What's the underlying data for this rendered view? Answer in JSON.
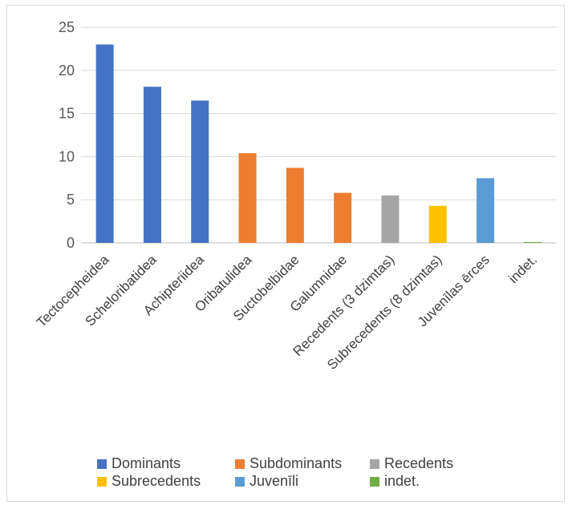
{
  "chart_data": {
    "type": "bar",
    "categories": [
      "Tectocepheidea",
      "Scheloribatidea",
      "Achipteriidea",
      "Oribatulidea",
      "Suctobelbidae",
      "Galumnidae",
      "Recedents (3 dzimtas)",
      "Subrecedents (8 dzimtas)",
      "Juvenīlas ērces",
      "indet."
    ],
    "values": [
      23.0,
      18.1,
      16.5,
      10.4,
      8.7,
      5.8,
      5.5,
      4.3,
      7.5,
      0.1
    ],
    "groups": [
      "Dominants",
      "Dominants",
      "Dominants",
      "Subdominants",
      "Subdominants",
      "Subdominants",
      "Recedents",
      "Subrecedents",
      "Juvenīli",
      "indet."
    ],
    "ylim": [
      0,
      25
    ],
    "yticks": [
      0,
      5,
      10,
      15,
      20,
      25
    ],
    "grid": true,
    "legend_position": "bottom",
    "legend": [
      {
        "name": "Dominants",
        "color": "#4472c4"
      },
      {
        "name": "Subdominants",
        "color": "#ed7d31"
      },
      {
        "name": "Recedents",
        "color": "#a5a5a5"
      },
      {
        "name": "Subrecedents",
        "color": "#ffc000"
      },
      {
        "name": "Juvenīli",
        "color": "#5b9bd5"
      },
      {
        "name": "indet.",
        "color": "#70ad47"
      }
    ]
  }
}
